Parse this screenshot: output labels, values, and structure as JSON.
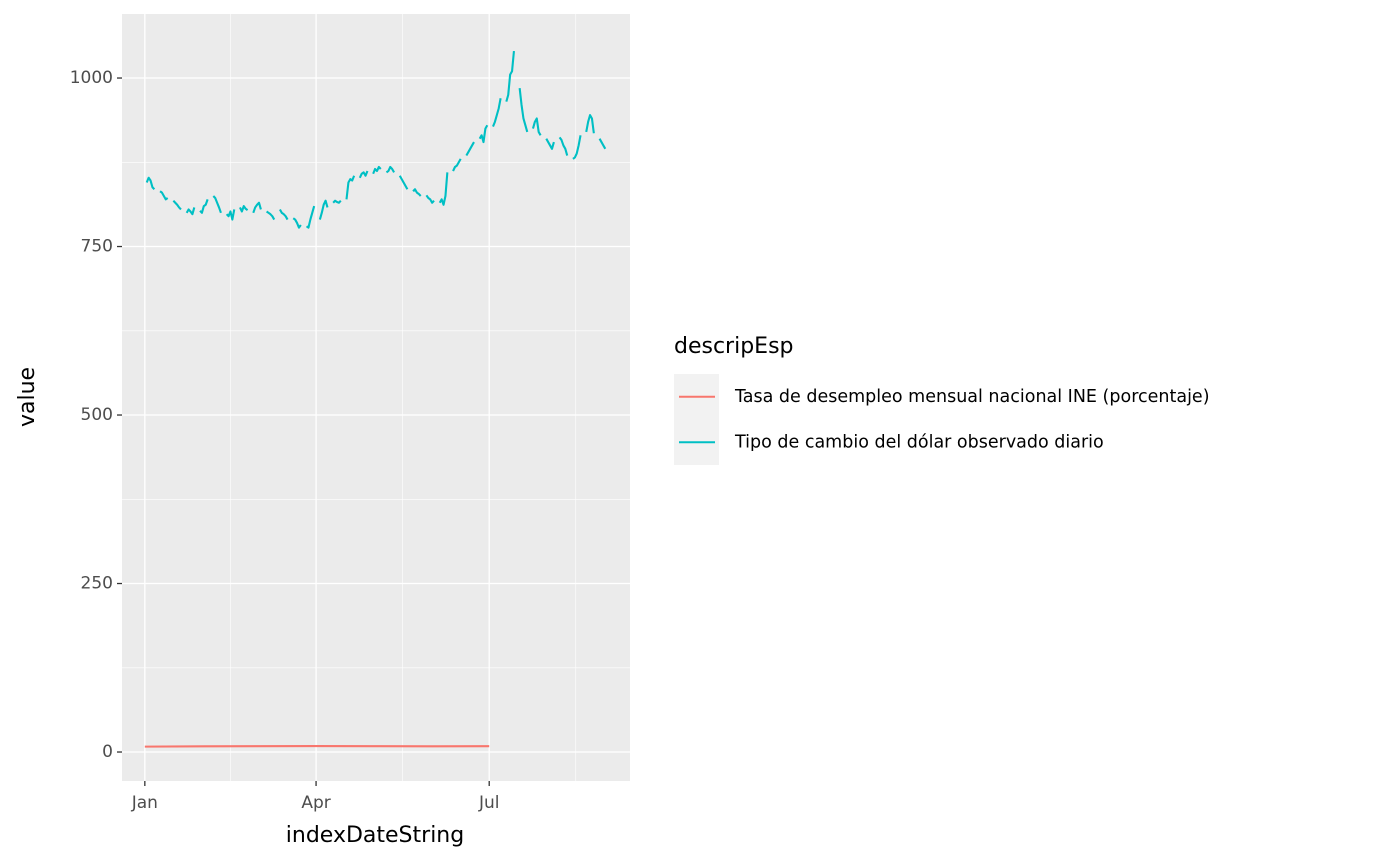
{
  "chart_data": {
    "type": "line",
    "x_label": "indexDateString",
    "y_label": "value",
    "legend_title": "descripEsp",
    "legend_position": "right",
    "grid": true,
    "xlim": [
      -12,
      255
    ],
    "ylim": [
      -43,
      1095
    ],
    "xticks": [
      {
        "value": 0,
        "label": "Jan"
      },
      {
        "value": 90,
        "label": "Apr"
      },
      {
        "value": 181,
        "label": "Jul"
      }
    ],
    "yticks": [
      0,
      250,
      500,
      750,
      1000
    ],
    "series": [
      {
        "name": "Tasa de desempleo mensual nacional INE (porcentaje)",
        "color": "#F8766D",
        "x": [
          0,
          31,
          59,
          90,
          120,
          151,
          181
        ],
        "values": [
          8.0,
          8.4,
          8.7,
          8.8,
          8.7,
          8.5,
          8.7
        ]
      },
      {
        "name": "Tipo de cambio del dólar observado diario",
        "color": "#00BFC4",
        "x": [
          0,
          1,
          2,
          3,
          4,
          5,
          6,
          7,
          8,
          9,
          10,
          11,
          12,
          13,
          14,
          15,
          16,
          17,
          18,
          19,
          20,
          21,
          22,
          23,
          24,
          25,
          26,
          27,
          28,
          29,
          30,
          31,
          32,
          33,
          34,
          35,
          36,
          37,
          38,
          39,
          40,
          41,
          42,
          43,
          44,
          45,
          46,
          47,
          48,
          49,
          50,
          51,
          52,
          53,
          54,
          55,
          56,
          57,
          58,
          59,
          60,
          61,
          62,
          63,
          64,
          65,
          66,
          67,
          68,
          69,
          70,
          71,
          72,
          73,
          74,
          75,
          76,
          77,
          78,
          79,
          80,
          81,
          82,
          83,
          84,
          85,
          86,
          87,
          88,
          89,
          90,
          91,
          92,
          93,
          94,
          95,
          96,
          97,
          98,
          99,
          100,
          101,
          102,
          103,
          104,
          105,
          106,
          107,
          108,
          109,
          110,
          111,
          112,
          113,
          114,
          115,
          116,
          117,
          118,
          119,
          120,
          121,
          122,
          123,
          124,
          125,
          126,
          127,
          128,
          129,
          130,
          131,
          132,
          133,
          134,
          135,
          136,
          137,
          138,
          139,
          140,
          141,
          142,
          143,
          144,
          145,
          146,
          147,
          148,
          149,
          150,
          151,
          152,
          153,
          154,
          155,
          156,
          157,
          158,
          159,
          160,
          161,
          162,
          163,
          164,
          165,
          166,
          167,
          168,
          169,
          170,
          171,
          172,
          173,
          174,
          175,
          176,
          177,
          178,
          179,
          180,
          181,
          182,
          183,
          184,
          185,
          186,
          187,
          188,
          189,
          190,
          191,
          192,
          193,
          194,
          195,
          196,
          197,
          198,
          199,
          200,
          201,
          202,
          203,
          204,
          205,
          206,
          207,
          208,
          209,
          210,
          211,
          212,
          213,
          214,
          215,
          216,
          217,
          218,
          219,
          220,
          221,
          222,
          223,
          224,
          225,
          226,
          227,
          228,
          229,
          230,
          231,
          232,
          233,
          234,
          235,
          236,
          237,
          238,
          239,
          240,
          241,
          242
        ],
        "values": [
          null,
          845,
          852,
          848,
          838,
          835,
          null,
          null,
          832,
          830,
          825,
          820,
          822,
          null,
          null,
          818,
          815,
          812,
          808,
          805,
          null,
          null,
          800,
          805,
          802,
          798,
          808,
          null,
          null,
          803,
          800,
          810,
          812,
          820,
          null,
          null,
          825,
          822,
          815,
          808,
          800,
          null,
          null,
          798,
          795,
          802,
          790,
          805,
          null,
          null,
          808,
          802,
          810,
          806,
          804,
          null,
          null,
          800,
          808,
          812,
          815,
          805,
          null,
          null,
          802,
          800,
          798,
          795,
          790,
          null,
          null,
          805,
          800,
          798,
          795,
          790,
          null,
          null,
          792,
          790,
          785,
          778,
          782,
          null,
          null,
          780,
          778,
          790,
          800,
          810,
          null,
          null,
          790,
          800,
          812,
          818,
          808,
          null,
          null,
          815,
          818,
          816,
          815,
          818,
          null,
          null,
          820,
          845,
          850,
          848,
          855,
          null,
          null,
          852,
          858,
          860,
          855,
          862,
          null,
          null,
          858,
          865,
          862,
          868,
          865,
          null,
          null,
          860,
          862,
          868,
          865,
          860,
          null,
          null,
          855,
          850,
          845,
          840,
          835,
          null,
          null,
          832,
          835,
          830,
          828,
          825,
          null,
          null,
          826,
          822,
          820,
          815,
          818,
          null,
          null,
          815,
          820,
          812,
          825,
          860,
          null,
          null,
          862,
          868,
          870,
          875,
          880,
          null,
          null,
          885,
          890,
          895,
          900,
          905,
          null,
          null,
          910,
          915,
          905,
          925,
          930,
          null,
          null,
          928,
          935,
          945,
          955,
          970,
          null,
          null,
          965,
          975,
          1005,
          1010,
          1040,
          null,
          null,
          985,
          960,
          940,
          930,
          920,
          null,
          null,
          925,
          935,
          940,
          920,
          915,
          null,
          null,
          910,
          905,
          900,
          895,
          905,
          null,
          null,
          912,
          908,
          900,
          895,
          885,
          null,
          null,
          880,
          882,
          888,
          900,
          915,
          null,
          null,
          920,
          935,
          945,
          940,
          918,
          null,
          null,
          910,
          905,
          900,
          895
        ]
      }
    ]
  }
}
